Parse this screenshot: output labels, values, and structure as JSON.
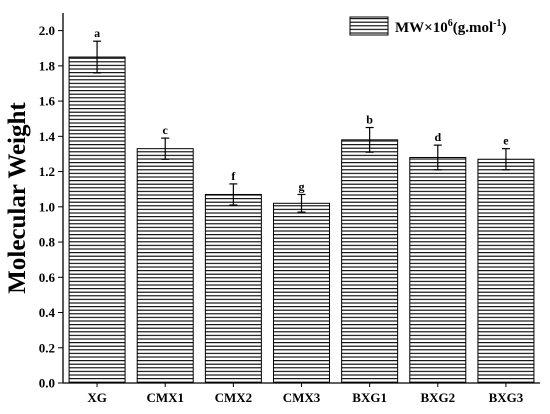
{
  "chart_data": {
    "type": "bar",
    "categories": [
      "XG",
      "CMX1",
      "CMX2",
      "CMX3",
      "BXG1",
      "BXG2",
      "BXG3"
    ],
    "values": [
      1.85,
      1.33,
      1.07,
      1.02,
      1.38,
      1.28,
      1.27
    ],
    "errors": [
      0.09,
      0.06,
      0.06,
      0.05,
      0.07,
      0.07,
      0.06
    ],
    "letters": [
      "a",
      "c",
      "f",
      "g",
      "b",
      "d",
      "e"
    ],
    "series": [
      {
        "name": "MW×10⁶(g.mol⁻¹)",
        "values": [
          1.85,
          1.33,
          1.07,
          1.02,
          1.38,
          1.28,
          1.27
        ]
      }
    ],
    "legend": {
      "prefix": "MW×10",
      "sup1": "6",
      "middle": "(g.mol",
      "sup2": "-1",
      "suffix": ")"
    },
    "legend_position": "top-right",
    "xlabel": "",
    "ylabel": "Molecular Weight",
    "ylim": [
      0.0,
      2.1
    ],
    "yticks": [
      "0.0",
      "0.2",
      "0.4",
      "0.6",
      "0.8",
      "1.0",
      "1.2",
      "1.4",
      "1.6",
      "1.8",
      "2.0"
    ],
    "grid": false,
    "bar_fill": "hatched-horizontal",
    "colors": {
      "line": "#000000",
      "background": "#ffffff"
    }
  }
}
